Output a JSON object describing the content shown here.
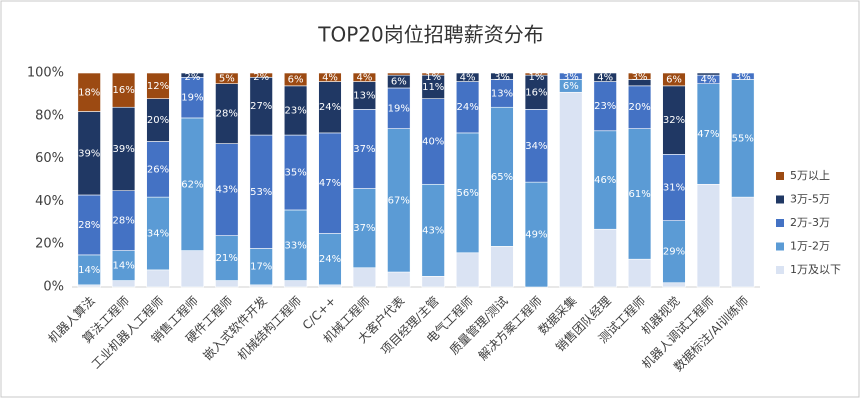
{
  "chart_data": {
    "type": "stacked_bar_100",
    "title": "TOP20岗位招聘薪资分布",
    "categories": [
      "机器人算法",
      "算法工程师",
      "工业机器人工程师",
      "销售工程师",
      "硬件工程师",
      "嵌入式软件开发",
      "机械结构工程师",
      "C/C++",
      "机械工程师",
      "大客户代表",
      "项目经理/主管",
      "电气工程师",
      "质量管理/测试",
      "解决方案工程师",
      "数据采集",
      "销售团队经理",
      "测试工程师",
      "机器视觉",
      "机器人调试工程师",
      "数据标注/AI训练师"
    ],
    "series": [
      {
        "name": "1万及以下",
        "color": "#dae3f3",
        "values": [
          1,
          3,
          8,
          17,
          3,
          1,
          3,
          1,
          9,
          7,
          5,
          16,
          19,
          0,
          91,
          27,
          13,
          2,
          48,
          42
        ],
        "value_labels": [
          null,
          null,
          null,
          null,
          null,
          null,
          null,
          null,
          null,
          null,
          null,
          null,
          null,
          null,
          null,
          null,
          null,
          null,
          null,
          null
        ]
      },
      {
        "name": "1万-2万",
        "color": "#5b9bd5",
        "values": [
          14,
          14,
          34,
          62,
          21,
          17,
          33,
          24,
          37,
          67,
          43,
          56,
          65,
          49,
          6,
          46,
          61,
          29,
          47,
          55
        ],
        "value_labels": [
          "14%",
          "14%",
          "34%",
          "62%",
          "21%",
          "17%",
          "33%",
          "24%",
          "37%",
          "67%",
          "43%",
          "56%",
          "65%",
          "49%",
          "6%",
          "46%",
          "61%",
          "29%",
          "47%",
          "55%"
        ]
      },
      {
        "name": "2万-3万",
        "color": "#4472c4",
        "values": [
          28,
          28,
          26,
          19,
          43,
          53,
          35,
          47,
          37,
          19,
          40,
          24,
          13,
          34,
          3,
          23,
          20,
          31,
          4,
          3
        ],
        "value_labels": [
          "28%",
          "28%",
          "26%",
          "19%",
          "43%",
          "53%",
          "35%",
          "47%",
          "37%",
          "19%",
          "40%",
          "24%",
          "13%",
          "34%",
          "3%",
          "23%",
          "20%",
          "31%",
          "4%",
          "3%"
        ]
      },
      {
        "name": "3万-5万",
        "color": "#203864",
        "values": [
          39,
          39,
          20,
          2,
          28,
          27,
          23,
          24,
          13,
          6,
          11,
          4,
          3,
          16,
          0,
          4,
          3,
          32,
          1,
          0
        ],
        "value_labels": [
          "39%",
          "39%",
          "20%",
          "2%",
          "28%",
          "27%",
          "23%",
          "24%",
          "13%",
          "6%",
          "11%",
          "4%",
          "3%",
          "16%",
          null,
          "4%",
          null,
          "32%",
          null,
          null
        ]
      },
      {
        "name": "5万以上",
        "color": "#9c4a12",
        "values": [
          18,
          16,
          12,
          0,
          5,
          2,
          6,
          4,
          4,
          1,
          1,
          0,
          0,
          1,
          0,
          0,
          3,
          6,
          0,
          0
        ],
        "value_labels": [
          "18%",
          "16%",
          "12%",
          null,
          "5%",
          "2%",
          "6%",
          "4%",
          "4%",
          null,
          "1%",
          null,
          null,
          "1%",
          null,
          null,
          "3%",
          "6%",
          null,
          null
        ]
      }
    ],
    "ylim": [
      0,
      100
    ],
    "yticks": [
      {
        "value": 0,
        "label": "0%"
      },
      {
        "value": 20,
        "label": "20%"
      },
      {
        "value": 40,
        "label": "40%"
      },
      {
        "value": 60,
        "label": "60%"
      },
      {
        "value": 80,
        "label": "80%"
      },
      {
        "value": 100,
        "label": "100%"
      }
    ]
  }
}
